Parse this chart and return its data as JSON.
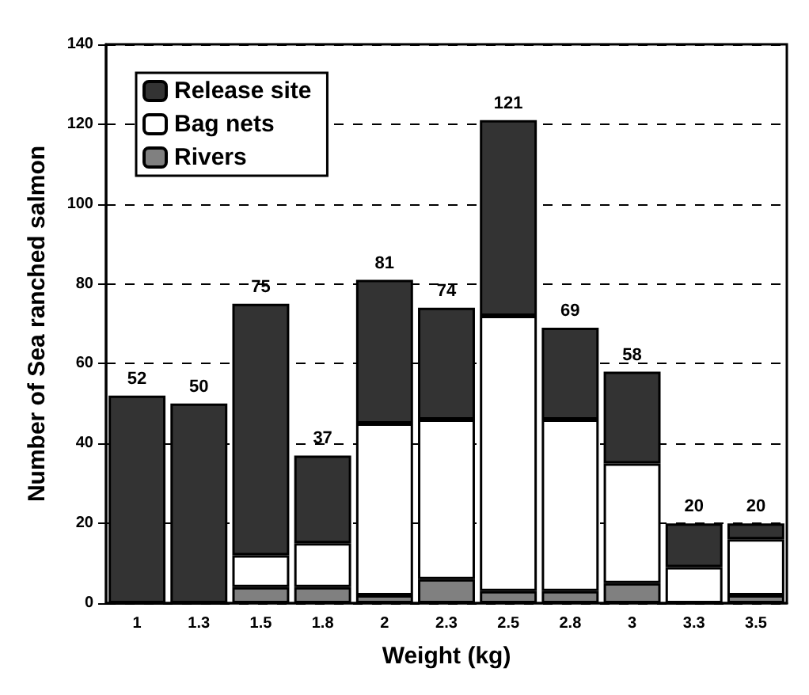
{
  "chart_data": {
    "type": "bar",
    "stacked": true,
    "xlabel": "Weight (kg)",
    "ylabel": "Number of Sea ranched salmon",
    "categories": [
      "1",
      "1.3",
      "1.5",
      "1.8",
      "2",
      "2.3",
      "2.5",
      "2.8",
      "3",
      "3.3",
      "3.5"
    ],
    "series": [
      {
        "name": "Rivers",
        "color": "#808080",
        "values": [
          0,
          0,
          4,
          4,
          2,
          6,
          3,
          3,
          5,
          0,
          2
        ]
      },
      {
        "name": "Bag nets",
        "color": "#ffffff",
        "values": [
          0,
          0,
          8,
          11,
          43,
          40,
          69,
          43,
          30,
          9,
          14
        ]
      },
      {
        "name": "Release site",
        "color": "#333333",
        "values": [
          52,
          50,
          63,
          22,
          36,
          28,
          49,
          23,
          23,
          11,
          4
        ]
      }
    ],
    "totals": [
      "52",
      "50",
      "75",
      "37",
      "81",
      "74",
      "121",
      "69",
      "58",
      "20",
      "20"
    ],
    "ylim": [
      0,
      140
    ],
    "yticks": [
      0,
      20,
      40,
      60,
      80,
      100,
      120,
      140
    ],
    "grid": "y",
    "legend": "top left"
  }
}
